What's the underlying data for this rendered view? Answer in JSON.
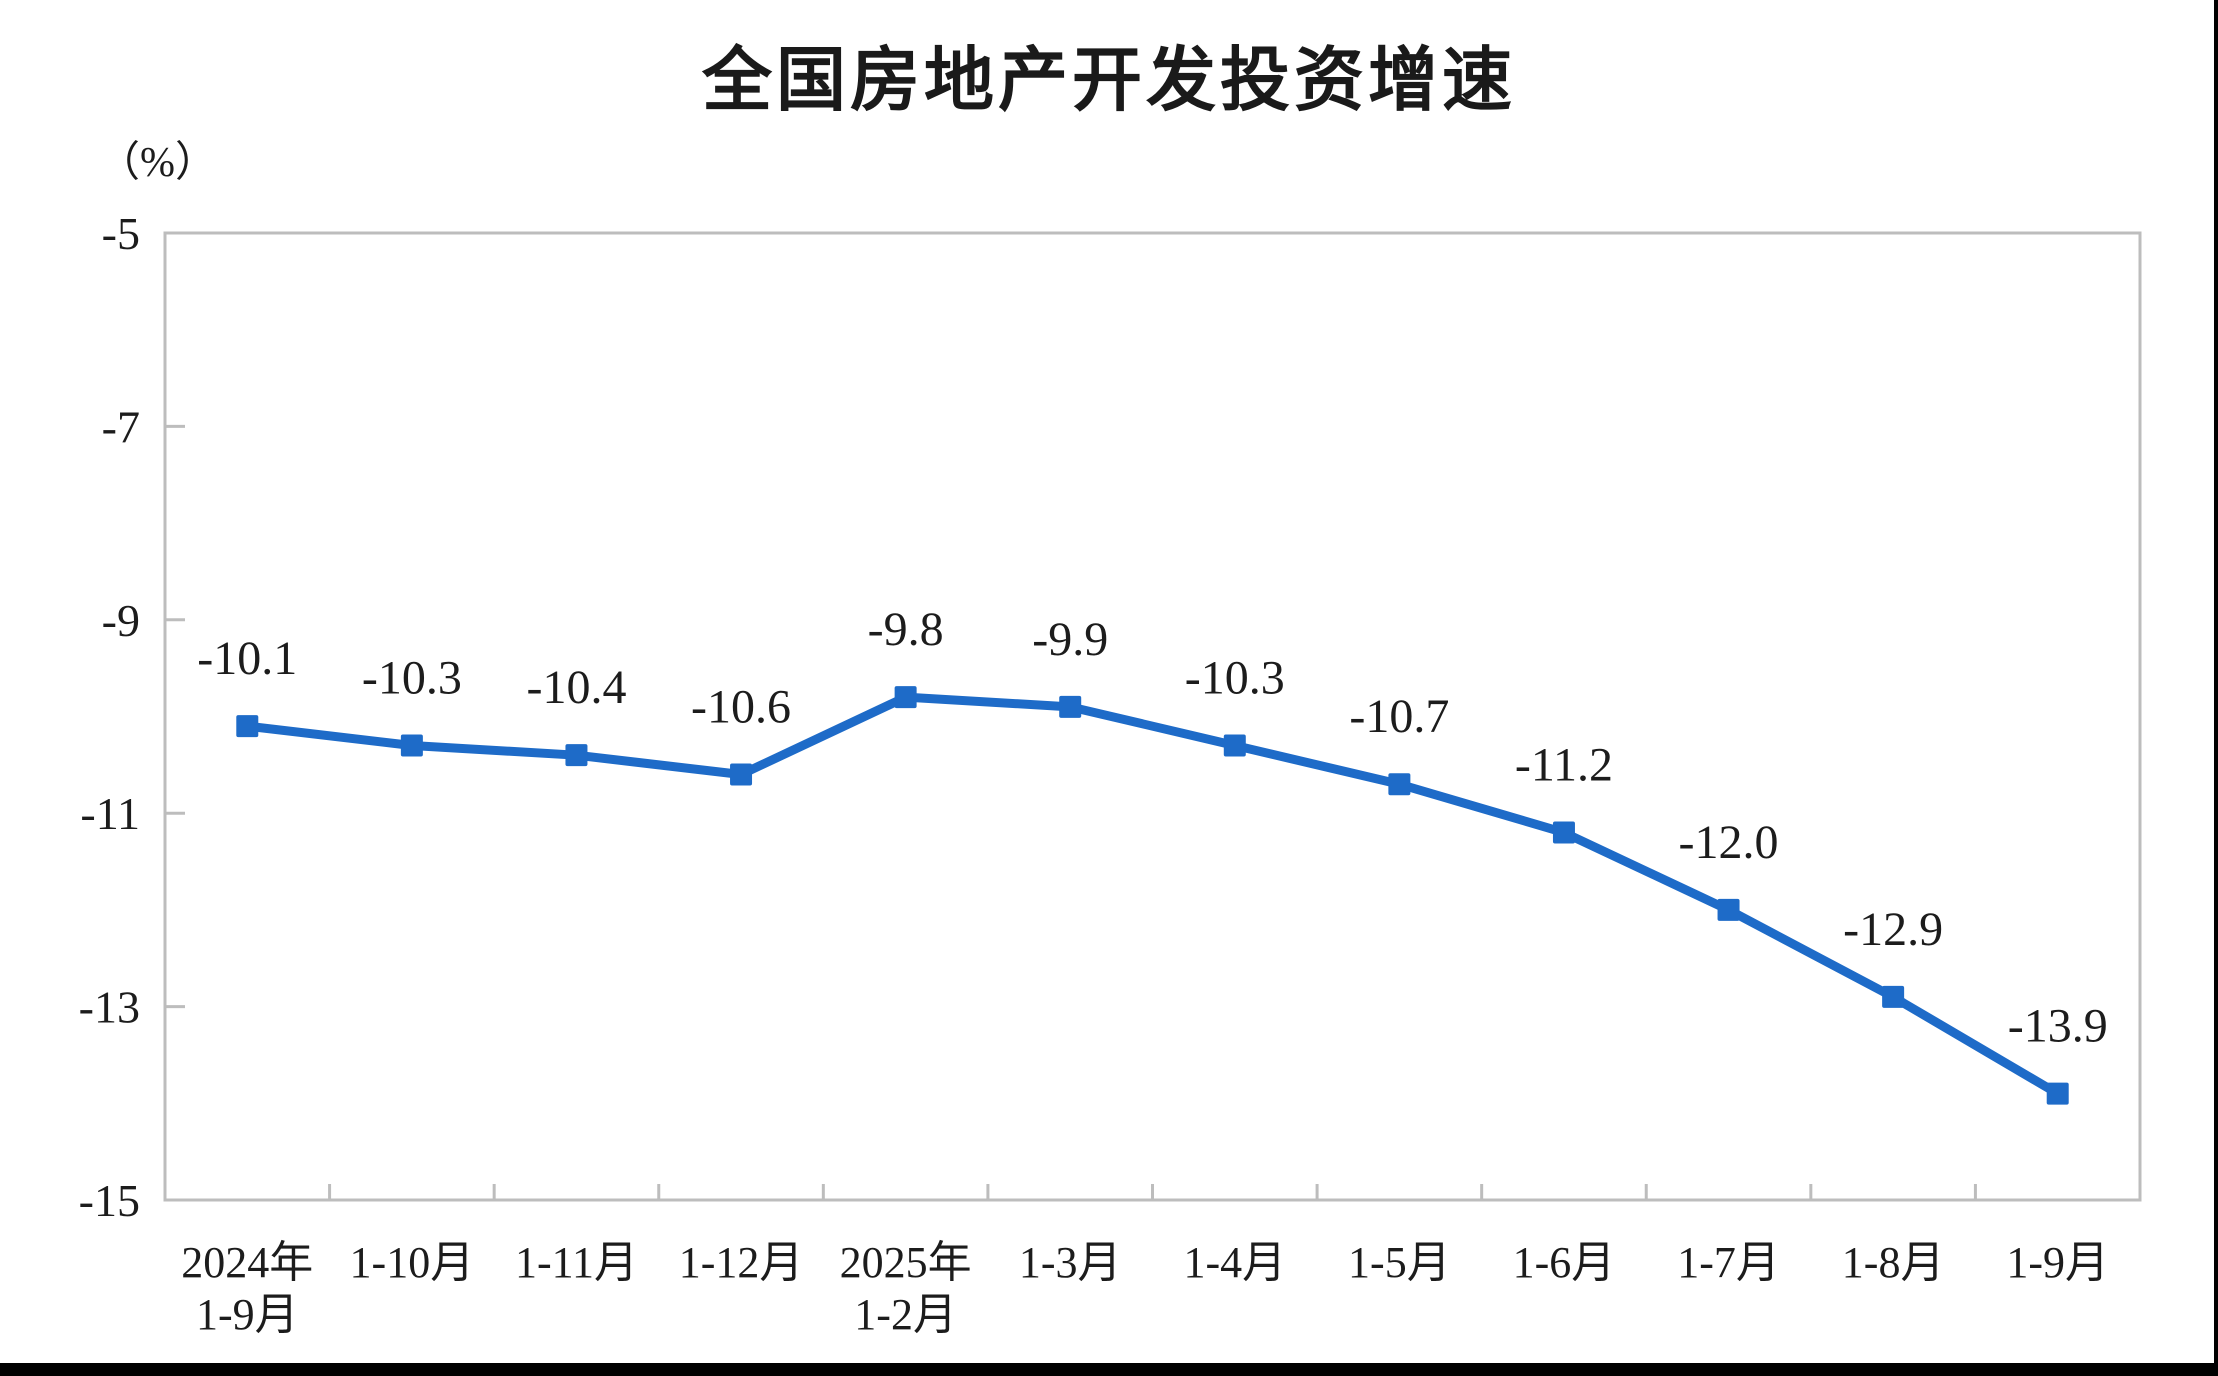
{
  "chart_data": {
    "type": "line",
    "title": "全国房地产开发投资增速",
    "unit_label": "（%）",
    "categories": [
      [
        "2024年",
        "1-9月"
      ],
      [
        "1-10月"
      ],
      [
        "1-11月"
      ],
      [
        "1-12月"
      ],
      [
        "2025年",
        "1-2月"
      ],
      [
        "1-3月"
      ],
      [
        "1-4月"
      ],
      [
        "1-5月"
      ],
      [
        "1-6月"
      ],
      [
        "1-7月"
      ],
      [
        "1-8月"
      ],
      [
        "1-9月"
      ]
    ],
    "values": [
      -10.1,
      -10.3,
      -10.4,
      -10.6,
      -9.8,
      -9.9,
      -10.3,
      -10.7,
      -11.2,
      -12.0,
      -12.9,
      -13.9
    ],
    "data_labels": [
      "-10.1",
      "-10.3",
      "-10.4",
      "-10.6",
      "-9.8",
      "-9.9",
      "-10.3",
      "-10.7",
      "-11.2",
      "-12.0",
      "-12.9",
      "-13.9"
    ],
    "y_ticks": [
      {
        "value": -5,
        "label": "-5"
      },
      {
        "value": -7,
        "label": "-7"
      },
      {
        "value": -9,
        "label": "-9"
      },
      {
        "value": -11,
        "label": "-11"
      },
      {
        "value": -13,
        "label": "-13"
      },
      {
        "value": -15,
        "label": "-15"
      }
    ],
    "ylim": [
      -15,
      -5
    ],
    "xlabel": "",
    "ylabel": "（%）",
    "grid": false,
    "legend": "none",
    "colors": {
      "line": "#1E6BC8",
      "axis": "#BDBDBD",
      "text": "#1C1C1C"
    }
  }
}
